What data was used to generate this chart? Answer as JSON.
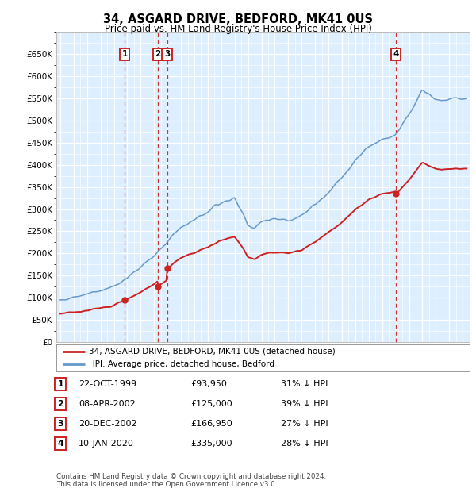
{
  "title": "34, ASGARD DRIVE, BEDFORD, MK41 0US",
  "subtitle": "Price paid vs. HM Land Registry's House Price Index (HPI)",
  "plot_bg_color": "#ddeeff",
  "ylim": [
    0,
    700000
  ],
  "yticks": [
    0,
    50000,
    100000,
    150000,
    200000,
    250000,
    300000,
    350000,
    400000,
    450000,
    500000,
    550000,
    600000,
    650000
  ],
  "xlim_start": 1994.7,
  "xlim_end": 2025.5,
  "sales": [
    {
      "label": "1",
      "date_num": 1999.81,
      "price": 93950
    },
    {
      "label": "2",
      "date_num": 2002.27,
      "price": 125000
    },
    {
      "label": "3",
      "date_num": 2002.97,
      "price": 166950
    },
    {
      "label": "4",
      "date_num": 2020.03,
      "price": 335000
    }
  ],
  "table_rows": [
    {
      "num": "1",
      "date": "22-OCT-1999",
      "price": "£93,950",
      "hpi": "31% ↓ HPI"
    },
    {
      "num": "2",
      "date": "08-APR-2002",
      "price": "£125,000",
      "hpi": "39% ↓ HPI"
    },
    {
      "num": "3",
      "date": "20-DEC-2002",
      "price": "£166,950",
      "hpi": "27% ↓ HPI"
    },
    {
      "num": "4",
      "date": "10-JAN-2020",
      "price": "£335,000",
      "hpi": "28% ↓ HPI"
    }
  ],
  "footer": "Contains HM Land Registry data © Crown copyright and database right 2024.\nThis data is licensed under the Open Government Licence v3.0.",
  "hpi_line_color": "#6699cc",
  "price_line_color": "#cc2222",
  "sale_marker_color": "#cc2222",
  "vline_color": "#cc3333",
  "label_box_color": "#cc2222",
  "legend_label_red": "34, ASGARD DRIVE, BEDFORD, MK41 0US (detached house)",
  "legend_label_blue": "HPI: Average price, detached house, Bedford"
}
